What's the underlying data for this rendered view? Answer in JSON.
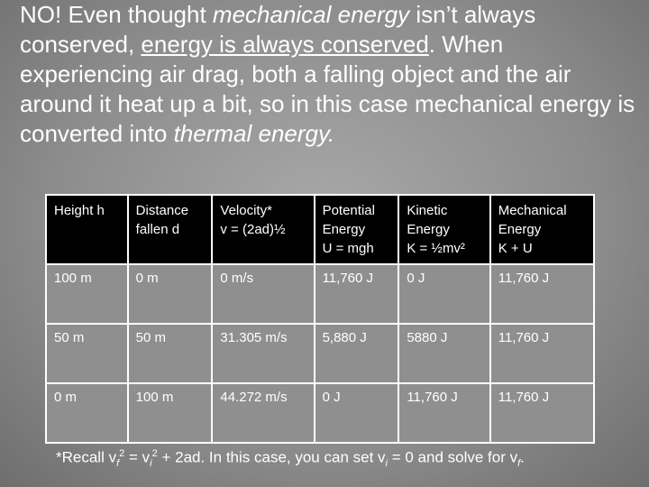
{
  "paragraph": [
    "NO!  Even thought ",
    "mechanical energy",
    " isn’t always conserved, ",
    "energy is always conserved",
    ". When experiencing air drag, both a falling object and the air around it heat up a bit, so in this case mechanical energy is converted into ",
    "thermal energy."
  ],
  "table": {
    "header": [
      [
        "Height h"
      ],
      [
        "Distance",
        "fallen d"
      ],
      [
        "Velocity*",
        "v = (2ad)½"
      ],
      [
        "Potential",
        "Energy",
        "U = mgh"
      ],
      [
        "Kinetic",
        "Energy",
        "K = ½mv²"
      ],
      [
        "Mechanical",
        "Energy",
        "K + U"
      ]
    ],
    "rows": [
      [
        "100 m",
        "0 m",
        "0 m/s",
        "11,760 J",
        "0 J",
        "11,760 J"
      ],
      [
        "50 m",
        "50 m",
        "31.305 m/s",
        "5,880 J",
        "5880 J",
        "11,760 J"
      ],
      [
        "0 m",
        "100 m",
        "44.272 m/s",
        "0 J",
        "11,760 J",
        "11,760 J"
      ]
    ]
  },
  "footnote": [
    "*Recall v",
    "f",
    "2",
    " = v",
    "i",
    "2",
    " + 2ad.  In this case, you can set v",
    "i",
    " = 0 and solve for v",
    "f",
    "."
  ]
}
